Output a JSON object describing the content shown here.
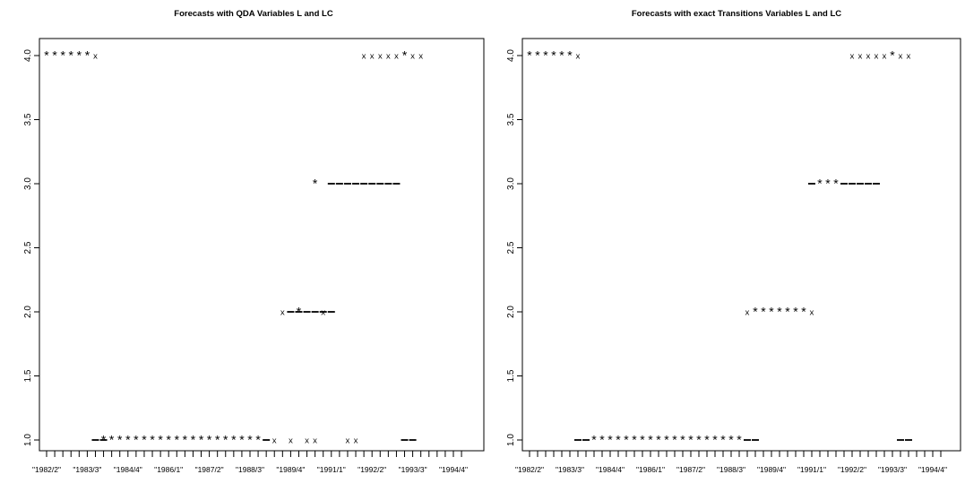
{
  "chart_data": [
    {
      "type": "scatter",
      "title": "Forecasts with QDA Variables L and LC",
      "xlabel": "",
      "ylabel": "",
      "ylim": [
        1.0,
        4.0
      ],
      "y_ticks": [
        "1.0",
        "1.5",
        "2.0",
        "2.5",
        "3.0",
        "3.5",
        "4.0"
      ],
      "x_tick_labels": [
        "\"1982/2\"",
        "\"1983/3\"",
        "\"1984/4\"",
        "\"1986/1\"",
        "\"1987/2\"",
        "\"1988/3\"",
        "\"1989/4\"",
        "\"1991/1\"",
        "\"1992/2\"",
        "\"1993/3\"",
        "\"1994/4\""
      ],
      "n_periods": 52,
      "series": [
        {
          "marker": "x",
          "points": [
            [
              6,
              4
            ],
            [
              28,
              1
            ],
            [
              29,
              2
            ],
            [
              30,
              1
            ],
            [
              32,
              1
            ],
            [
              33,
              1
            ],
            [
              34,
              2
            ],
            [
              37,
              1
            ],
            [
              38,
              1
            ],
            [
              39,
              4
            ],
            [
              40,
              4
            ],
            [
              41,
              4
            ],
            [
              42,
              4
            ],
            [
              43,
              4
            ],
            [
              45,
              4
            ],
            [
              46,
              4
            ]
          ]
        },
        {
          "marker": "*",
          "points": [
            [
              0,
              4
            ],
            [
              1,
              4
            ],
            [
              2,
              4
            ],
            [
              3,
              4
            ],
            [
              4,
              4
            ],
            [
              5,
              4
            ],
            [
              7,
              1
            ],
            [
              8,
              1
            ],
            [
              9,
              1
            ],
            [
              10,
              1
            ],
            [
              11,
              1
            ],
            [
              12,
              1
            ],
            [
              13,
              1
            ],
            [
              14,
              1
            ],
            [
              15,
              1
            ],
            [
              16,
              1
            ],
            [
              17,
              1
            ],
            [
              18,
              1
            ],
            [
              19,
              1
            ],
            [
              20,
              1
            ],
            [
              21,
              1
            ],
            [
              22,
              1
            ],
            [
              23,
              1
            ],
            [
              24,
              1
            ],
            [
              25,
              1
            ],
            [
              26,
              1
            ],
            [
              31,
              2
            ],
            [
              33,
              3
            ],
            [
              44,
              4
            ]
          ]
        },
        {
          "marker": "-",
          "points": [
            [
              6,
              1
            ],
            [
              7,
              1
            ],
            [
              27,
              1
            ],
            [
              30,
              2
            ],
            [
              31,
              2
            ],
            [
              32,
              2
            ],
            [
              33,
              2
            ],
            [
              34,
              2
            ],
            [
              35,
              2
            ],
            [
              35,
              3
            ],
            [
              36,
              3
            ],
            [
              37,
              3
            ],
            [
              38,
              3
            ],
            [
              39,
              3
            ],
            [
              40,
              3
            ],
            [
              41,
              3
            ],
            [
              42,
              3
            ],
            [
              43,
              3
            ],
            [
              44,
              1
            ],
            [
              45,
              1
            ]
          ]
        }
      ]
    },
    {
      "type": "scatter",
      "title": "Forecasts with exact Transitions Variables L and LC",
      "xlabel": "",
      "ylabel": "",
      "ylim": [
        1.0,
        4.0
      ],
      "y_ticks": [
        "1.0",
        "1.5",
        "2.0",
        "2.5",
        "3.0",
        "3.5",
        "4.0"
      ],
      "x_tick_labels": [
        "\"1982/2\"",
        "\"1983/3\"",
        "\"1984/4\"",
        "\"1986/1\"",
        "\"1987/2\"",
        "\"1988/3\"",
        "\"1989/4\"",
        "\"1991/1\"",
        "\"1992/2\"",
        "\"1993/3\"",
        "\"1994/4\""
      ],
      "n_periods": 52,
      "series": [
        {
          "marker": "x",
          "points": [
            [
              6,
              4
            ],
            [
              27,
              2
            ],
            [
              35,
              2
            ],
            [
              40,
              4
            ],
            [
              41,
              4
            ],
            [
              42,
              4
            ],
            [
              43,
              4
            ],
            [
              44,
              4
            ],
            [
              46,
              4
            ],
            [
              47,
              4
            ]
          ]
        },
        {
          "marker": "*",
          "points": [
            [
              0,
              4
            ],
            [
              1,
              4
            ],
            [
              2,
              4
            ],
            [
              3,
              4
            ],
            [
              4,
              4
            ],
            [
              5,
              4
            ],
            [
              8,
              1
            ],
            [
              9,
              1
            ],
            [
              10,
              1
            ],
            [
              11,
              1
            ],
            [
              12,
              1
            ],
            [
              13,
              1
            ],
            [
              14,
              1
            ],
            [
              15,
              1
            ],
            [
              16,
              1
            ],
            [
              17,
              1
            ],
            [
              18,
              1
            ],
            [
              19,
              1
            ],
            [
              20,
              1
            ],
            [
              21,
              1
            ],
            [
              22,
              1
            ],
            [
              23,
              1
            ],
            [
              24,
              1
            ],
            [
              25,
              1
            ],
            [
              26,
              1
            ],
            [
              28,
              2
            ],
            [
              29,
              2
            ],
            [
              30,
              2
            ],
            [
              31,
              2
            ],
            [
              32,
              2
            ],
            [
              33,
              2
            ],
            [
              34,
              2
            ],
            [
              36,
              3
            ],
            [
              37,
              3
            ],
            [
              38,
              3
            ],
            [
              45,
              4
            ]
          ]
        },
        {
          "marker": "-",
          "points": [
            [
              6,
              1
            ],
            [
              7,
              1
            ],
            [
              27,
              1
            ],
            [
              28,
              1
            ],
            [
              35,
              3
            ],
            [
              39,
              3
            ],
            [
              40,
              3
            ],
            [
              41,
              3
            ],
            [
              42,
              3
            ],
            [
              43,
              3
            ],
            [
              46,
              1
            ],
            [
              47,
              1
            ]
          ]
        }
      ]
    }
  ]
}
